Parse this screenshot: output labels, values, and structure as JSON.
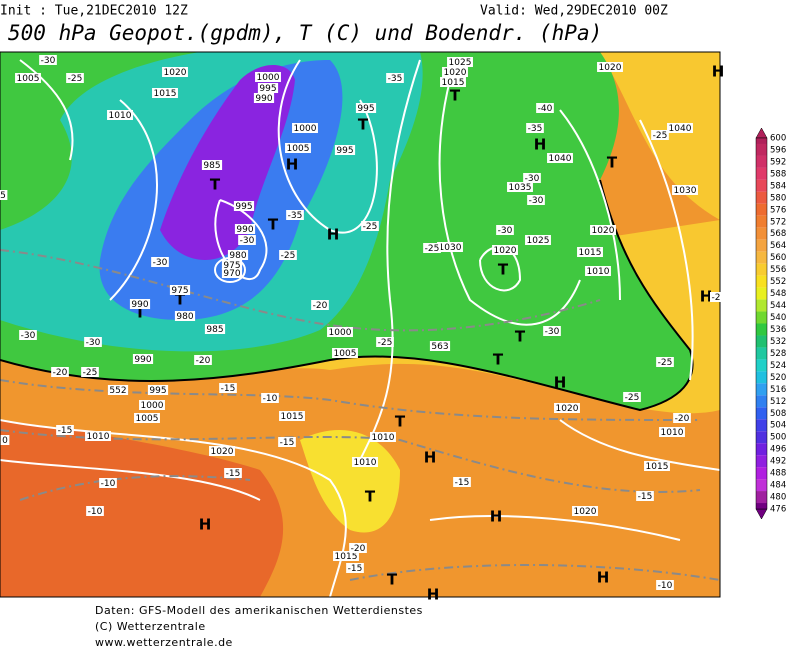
{
  "header": {
    "init": "Init : Tue,21DEC2010 12Z",
    "valid": "Valid: Wed,29DEC2010 00Z",
    "title": "500 hPa Geopot.(gpdm), T (C) und Bodendr. (hPa)"
  },
  "footer": [
    "Daten: GFS-Modell des amerikanischen Wetterdienstes",
    "(C) Wetterzentrale",
    "www.wetterzentrale.de"
  ],
  "colorbar": {
    "levels": [
      600,
      596,
      592,
      588,
      584,
      580,
      576,
      572,
      568,
      564,
      560,
      556,
      552,
      548,
      544,
      540,
      536,
      532,
      528,
      524,
      520,
      516,
      512,
      508,
      504,
      500,
      496,
      492,
      488,
      484,
      480,
      476
    ],
    "colors": [
      "#b0205a",
      "#c02860",
      "#d03068",
      "#e03a6a",
      "#e84858",
      "#ec5a40",
      "#ee6c30",
      "#f07e30",
      "#f29038",
      "#f4a440",
      "#f6b840",
      "#f8cc30",
      "#f8e020",
      "#e8f020",
      "#b0e830",
      "#70d830",
      "#30c840",
      "#20c070",
      "#20c8a0",
      "#20d0c8",
      "#20c0e0",
      "#30a0f0",
      "#3080f0",
      "#3060f0",
      "#4040e8",
      "#5030e0",
      "#7020e0",
      "#9020e0",
      "#b020e0",
      "#c030d8",
      "#a020a0",
      "#700080"
    ]
  },
  "pressure_centers": [
    "T",
    "H",
    "T",
    "T",
    "H",
    "H",
    "T",
    "T",
    "H",
    "T",
    "T",
    "T",
    "T",
    "T",
    "H",
    "H",
    "T",
    "T",
    "H",
    "H",
    "H",
    "T",
    "H",
    "H"
  ],
  "contour_labels": [
    "1005",
    "1020",
    "1015",
    "1010",
    "-30",
    "-25",
    "1000",
    "995",
    "990",
    "1000",
    "1005",
    "995",
    "995",
    "985",
    "-35",
    "1025",
    "1020",
    "1015",
    "-40",
    "-35",
    "1040",
    "1035",
    "-30",
    "-30",
    "1020",
    "1040",
    "-25",
    "1030",
    "1020",
    "1015",
    "1010",
    "1025",
    "1030",
    "-25",
    "1020",
    "-30",
    "-25",
    "995",
    "-35",
    "990",
    "-30",
    "980",
    "975",
    "970",
    "-25",
    "975",
    "990",
    "980",
    "985",
    "-30",
    "-20",
    "1000",
    "1005",
    "-25",
    "563",
    "-30",
    "-25",
    "1020",
    "-25",
    "1010",
    "-20",
    "-30",
    "-30",
    "-25",
    "-20",
    "990",
    "-20",
    "995",
    "1000",
    "1005",
    "1010",
    "-15",
    "-15",
    "-10",
    "1015",
    "1010",
    "1010",
    "-15",
    "1020",
    "-15",
    "-10",
    "-10",
    "-15",
    "1015",
    "-15",
    "1020",
    "1015",
    "-15",
    "-20",
    "-10",
    "0",
    "5",
    "-2",
    "552"
  ]
}
